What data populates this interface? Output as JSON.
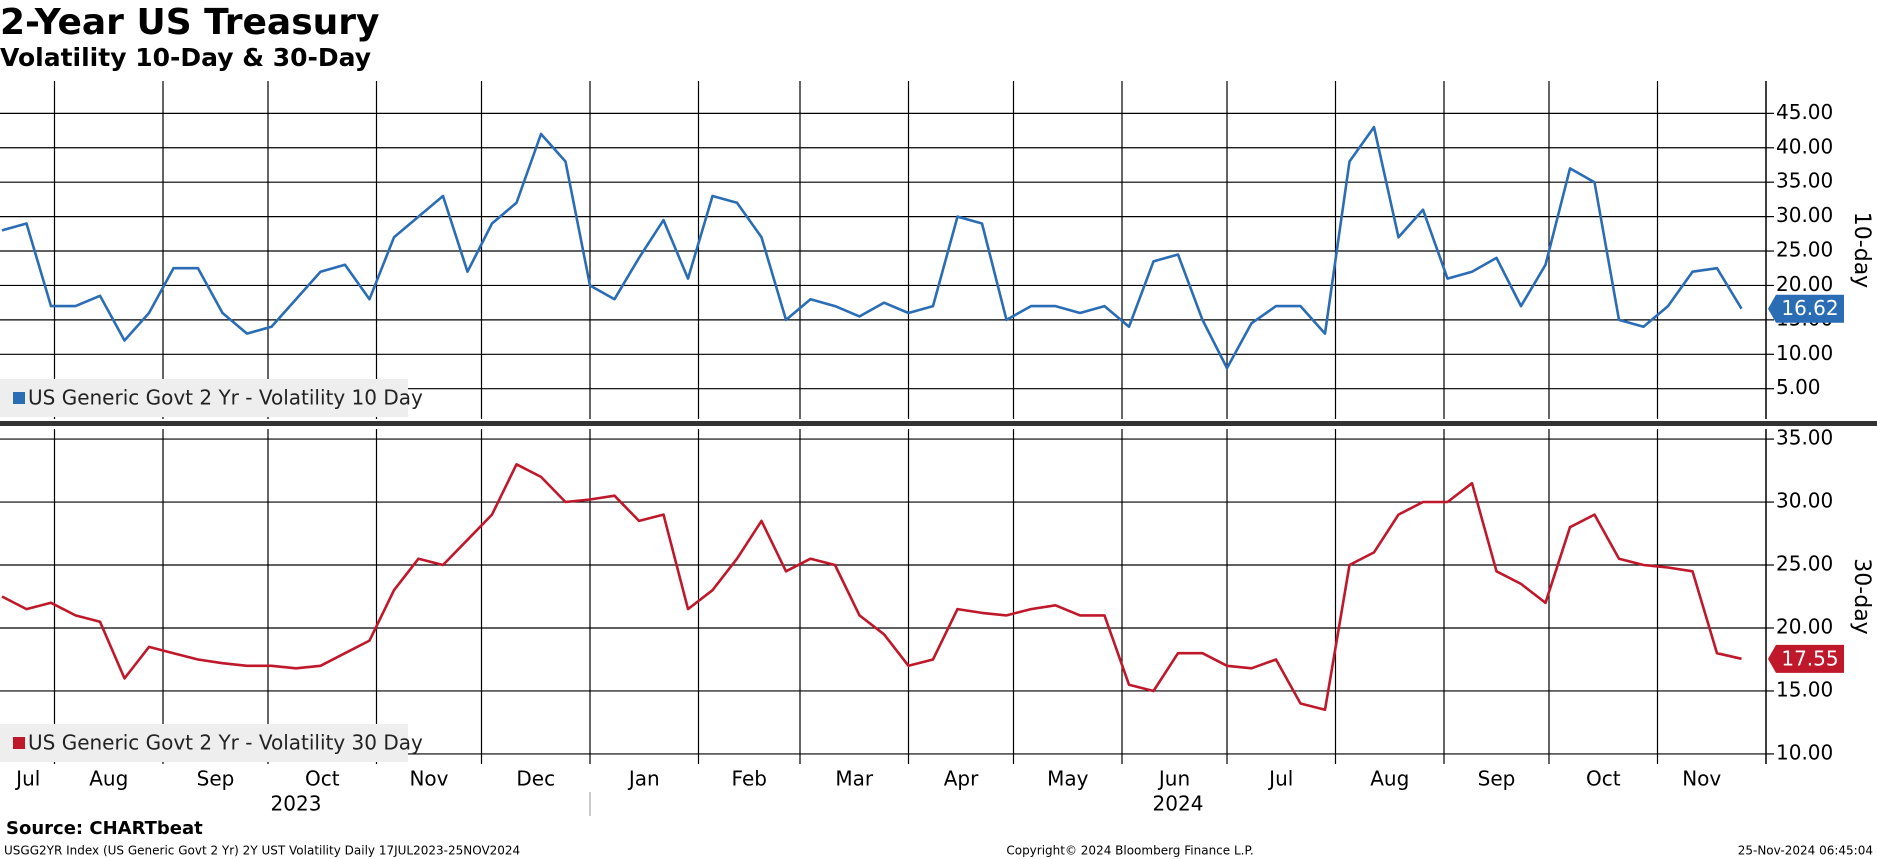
{
  "title": "2-Year US Treasury",
  "subtitle": "Volatility 10-Day & 30-Day",
  "source": "Source: CHARTbeat",
  "footer": {
    "left": "USGG2YR Index (US Generic Govt 2 Yr) 2Y UST Volatility  Daily 17JUL2023-25NOV2024",
    "center": "Copyright© 2024 Bloomberg Finance L.P.",
    "right": "25-Nov-2024 06:45:04"
  },
  "x_axis": {
    "xlim": [
      "2023-07-17",
      "2024-12-02"
    ],
    "xticks": [
      {
        "value": "2023-07-01",
        "label": "Jul"
      },
      {
        "value": "2023-08-01",
        "label": "Aug"
      },
      {
        "value": "2023-09-01",
        "label": "Sep"
      },
      {
        "value": "2023-10-01",
        "label": "Oct"
      },
      {
        "value": "2023-11-01",
        "label": "Nov"
      },
      {
        "value": "2023-12-01",
        "label": "Dec"
      },
      {
        "value": "2024-01-01",
        "label": "Jan"
      },
      {
        "value": "2024-02-01",
        "label": "Feb"
      },
      {
        "value": "2024-03-01",
        "label": "Mar"
      },
      {
        "value": "2024-04-01",
        "label": "Apr"
      },
      {
        "value": "2024-05-01",
        "label": "May"
      },
      {
        "value": "2024-06-01",
        "label": "Jun"
      },
      {
        "value": "2024-07-01",
        "label": "Jul"
      },
      {
        "value": "2024-08-01",
        "label": "Aug"
      },
      {
        "value": "2024-09-01",
        "label": "Sep"
      },
      {
        "value": "2024-10-01",
        "label": "Oct"
      },
      {
        "value": "2024-11-01",
        "label": "Nov"
      }
    ],
    "years": [
      2023,
      2024
    ]
  },
  "chart_data": [
    {
      "type": "line",
      "axis_label": "10-day",
      "grid": true,
      "ylim": [
        0.6,
        49.7
      ],
      "yticks": [
        {
          "value": 5,
          "label": "5.00"
        },
        {
          "value": 10,
          "label": "10.00"
        },
        {
          "value": 15,
          "label": "15.00"
        },
        {
          "value": 20,
          "label": "20.00"
        },
        {
          "value": 25,
          "label": "25.00"
        },
        {
          "value": 30,
          "label": "30.00"
        },
        {
          "value": 35,
          "label": "35.00"
        },
        {
          "value": 40,
          "label": "40.00"
        },
        {
          "value": 45,
          "label": "45.00"
        }
      ],
      "x": [
        "2023-07-17",
        "2023-07-24",
        "2023-07-31",
        "2023-08-07",
        "2023-08-14",
        "2023-08-21",
        "2023-08-28",
        "2023-09-04",
        "2023-09-11",
        "2023-09-18",
        "2023-09-25",
        "2023-10-02",
        "2023-10-09",
        "2023-10-16",
        "2023-10-23",
        "2023-10-30",
        "2023-11-06",
        "2023-11-13",
        "2023-11-20",
        "2023-11-27",
        "2023-12-04",
        "2023-12-11",
        "2023-12-18",
        "2023-12-25",
        "2024-01-01",
        "2024-01-08",
        "2024-01-15",
        "2024-01-22",
        "2024-01-29",
        "2024-02-05",
        "2024-02-12",
        "2024-02-19",
        "2024-02-26",
        "2024-03-04",
        "2024-03-11",
        "2024-03-18",
        "2024-03-25",
        "2024-04-01",
        "2024-04-08",
        "2024-04-15",
        "2024-04-22",
        "2024-04-29",
        "2024-05-06",
        "2024-05-13",
        "2024-05-20",
        "2024-05-27",
        "2024-06-03",
        "2024-06-10",
        "2024-06-17",
        "2024-06-24",
        "2024-07-01",
        "2024-07-08",
        "2024-07-15",
        "2024-07-22",
        "2024-07-29",
        "2024-08-05",
        "2024-08-12",
        "2024-08-19",
        "2024-08-26",
        "2024-09-02",
        "2024-09-09",
        "2024-09-16",
        "2024-09-23",
        "2024-09-30",
        "2024-10-07",
        "2024-10-14",
        "2024-10-21",
        "2024-10-28",
        "2024-11-04",
        "2024-11-11",
        "2024-11-18",
        "2024-11-25"
      ],
      "series": [
        {
          "name": "US Generic Govt 2 Yr - Volatility 10 Day",
          "color": "#2a6db5",
          "values": [
            28,
            29,
            17,
            17,
            18.5,
            12,
            16,
            22.5,
            22.5,
            16,
            13,
            14,
            18,
            22,
            23,
            18,
            27,
            30,
            33,
            22,
            29,
            32,
            42,
            38,
            20,
            18,
            24,
            29.5,
            21,
            33,
            32,
            27,
            15,
            18,
            17,
            15.5,
            17.5,
            16,
            17,
            30,
            29,
            15,
            17,
            17,
            16,
            17,
            14,
            23.5,
            24.5,
            15,
            8,
            14.5,
            17,
            17,
            13,
            38,
            43,
            27,
            31,
            21,
            22,
            24,
            17,
            23,
            37,
            35,
            15,
            14,
            17,
            22,
            22.5,
            16.62
          ]
        }
      ]
    },
    {
      "type": "line",
      "axis_label": "30-day",
      "grid": true,
      "ylim": [
        9.2,
        35.8
      ],
      "yticks": [
        {
          "value": 10,
          "label": "10.00"
        },
        {
          "value": 15,
          "label": "15.00"
        },
        {
          "value": 20,
          "label": "20.00"
        },
        {
          "value": 25,
          "label": "25.00"
        },
        {
          "value": 30,
          "label": "30.00"
        },
        {
          "value": 35,
          "label": "35.00"
        }
      ],
      "x": [
        "2023-07-17",
        "2023-07-24",
        "2023-07-31",
        "2023-08-07",
        "2023-08-14",
        "2023-08-21",
        "2023-08-28",
        "2023-09-04",
        "2023-09-11",
        "2023-09-18",
        "2023-09-25",
        "2023-10-02",
        "2023-10-09",
        "2023-10-16",
        "2023-10-23",
        "2023-10-30",
        "2023-11-06",
        "2023-11-13",
        "2023-11-20",
        "2023-11-27",
        "2023-12-04",
        "2023-12-11",
        "2023-12-18",
        "2023-12-25",
        "2024-01-01",
        "2024-01-08",
        "2024-01-15",
        "2024-01-22",
        "2024-01-29",
        "2024-02-05",
        "2024-02-12",
        "2024-02-19",
        "2024-02-26",
        "2024-03-04",
        "2024-03-11",
        "2024-03-18",
        "2024-03-25",
        "2024-04-01",
        "2024-04-08",
        "2024-04-15",
        "2024-04-22",
        "2024-04-29",
        "2024-05-06",
        "2024-05-13",
        "2024-05-20",
        "2024-05-27",
        "2024-06-03",
        "2024-06-10",
        "2024-06-17",
        "2024-06-24",
        "2024-07-01",
        "2024-07-08",
        "2024-07-15",
        "2024-07-22",
        "2024-07-29",
        "2024-08-05",
        "2024-08-12",
        "2024-08-19",
        "2024-08-26",
        "2024-09-02",
        "2024-09-09",
        "2024-09-16",
        "2024-09-23",
        "2024-09-30",
        "2024-10-07",
        "2024-10-14",
        "2024-10-21",
        "2024-10-28",
        "2024-11-04",
        "2024-11-11",
        "2024-11-18",
        "2024-11-25"
      ],
      "series": [
        {
          "name": "US Generic Govt 2 Yr - Volatility 30 Day",
          "color": "#c0182b",
          "values": [
            22.5,
            21.5,
            22,
            21,
            20.5,
            16,
            18.5,
            18,
            17.5,
            17.2,
            17,
            17,
            16.8,
            17,
            18,
            19,
            23,
            25.5,
            25,
            27,
            29,
            33,
            32,
            30,
            30.2,
            30.5,
            28.5,
            29,
            21.5,
            23,
            25.5,
            28.5,
            24.5,
            25.5,
            25,
            21,
            19.5,
            17,
            17.5,
            21.5,
            21.2,
            21,
            21.5,
            21.8,
            21,
            21,
            15.5,
            15,
            18,
            18,
            17,
            16.8,
            17.5,
            14,
            13.5,
            25,
            26,
            29,
            30,
            30,
            31.5,
            24.5,
            23.5,
            22,
            28,
            29,
            25.5,
            25,
            24.8,
            24.5,
            18,
            17.55
          ]
        }
      ]
    }
  ]
}
